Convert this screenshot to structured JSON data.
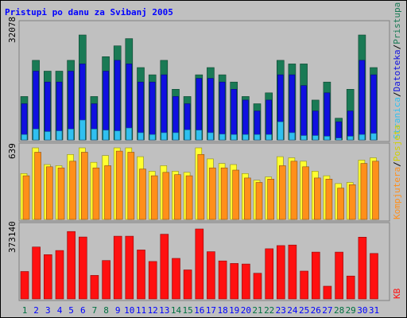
{
  "chart_data": [
    {
      "type": "bar",
      "title": "Pristupi po danu za Svibanj 2005",
      "categories": [
        "1",
        "2",
        "3",
        "4",
        "5",
        "6",
        "7",
        "8",
        "9",
        "10",
        "11",
        "12",
        "13",
        "14",
        "15",
        "16",
        "17",
        "18",
        "19",
        "20",
        "21",
        "22",
        "23",
        "24",
        "25",
        "26",
        "27",
        "28",
        "29",
        "30",
        "31"
      ],
      "ylabel": "32078",
      "legend": [
        "Pristupa",
        "/",
        "Datoteka",
        "/",
        "Stranica"
      ],
      "series": [
        {
          "name": "Pristupa",
          "color": "#1a7a55",
          "values": [
            12000,
            22000,
            19000,
            19000,
            22000,
            29000,
            12000,
            23000,
            26000,
            28000,
            20000,
            18000,
            22000,
            14000,
            12000,
            18000,
            20000,
            18000,
            16000,
            12000,
            10000,
            13000,
            22000,
            21000,
            21000,
            11000,
            16000,
            6000,
            14000,
            29000,
            20000
          ]
        },
        {
          "name": "Datoteka",
          "color": "#1010e0",
          "values": [
            10000,
            19000,
            16000,
            16000,
            19000,
            21000,
            10000,
            19000,
            22000,
            21000,
            16000,
            16000,
            18000,
            12000,
            10000,
            17000,
            17000,
            16000,
            14000,
            11000,
            8000,
            11000,
            18000,
            18000,
            15000,
            8000,
            13000,
            5000,
            8000,
            22000,
            18000
          ]
        },
        {
          "name": "Stranica",
          "color": "#30c0f0",
          "values": [
            1500,
            3000,
            2300,
            2500,
            3000,
            5500,
            3000,
            2700,
            2500,
            3300,
            2000,
            1500,
            2000,
            2000,
            2800,
            2700,
            2000,
            1600,
            1500,
            1500,
            1500,
            1500,
            5000,
            2000,
            1200,
            1200,
            1000,
            500,
            1000,
            1500,
            1800
          ]
        }
      ]
    },
    {
      "type": "bar",
      "categories": [
        "1",
        "2",
        "3",
        "4",
        "5",
        "6",
        "7",
        "8",
        "9",
        "10",
        "11",
        "12",
        "13",
        "14",
        "15",
        "16",
        "17",
        "18",
        "19",
        "20",
        "21",
        "22",
        "23",
        "24",
        "25",
        "26",
        "27",
        "28",
        "29",
        "30",
        "31"
      ],
      "ylabel": "639",
      "legend": [
        "Kompjutera",
        "/",
        "Posjeta"
      ],
      "series": [
        {
          "name": "Posjeta",
          "color": "#ffff30",
          "values": [
            410,
            639,
            490,
            480,
            580,
            639,
            510,
            570,
            639,
            639,
            560,
            430,
            480,
            430,
            420,
            639,
            540,
            500,
            490,
            410,
            350,
            380,
            560,
            550,
            520,
            430,
            390,
            320,
            330,
            530,
            550
          ]
        },
        {
          "name": "Kompjutera",
          "color": "#ff8f1a",
          "values": [
            390,
            600,
            470,
            460,
            520,
            600,
            460,
            480,
            610,
            600,
            450,
            390,
            420,
            400,
            390,
            580,
            460,
            460,
            440,
            370,
            330,
            360,
            480,
            520,
            470,
            370,
            360,
            280,
            310,
            500,
            520
          ]
        }
      ]
    },
    {
      "type": "bar",
      "categories": [
        "1",
        "2",
        "3",
        "4",
        "5",
        "6",
        "7",
        "8",
        "9",
        "10",
        "11",
        "12",
        "13",
        "14",
        "15",
        "16",
        "17",
        "18",
        "19",
        "20",
        "21",
        "22",
        "23",
        "24",
        "25",
        "26",
        "27",
        "28",
        "29",
        "30",
        "31"
      ],
      "ylabel": "373140",
      "legend": [
        "KB"
      ],
      "series": [
        {
          "name": "KB",
          "color": "#ff1010",
          "values": [
            140000,
            265000,
            226000,
            247000,
            344000,
            316000,
            120000,
            196000,
            320000,
            320000,
            250000,
            191000,
            330000,
            207000,
            148000,
            357000,
            241000,
            194000,
            181000,
            178000,
            131000,
            256000,
            272000,
            275000,
            142000,
            239000,
            65000,
            239000,
            117000,
            315000,
            232000
          ]
        }
      ]
    }
  ],
  "colors": {
    "background": "#c0c0c0",
    "title": "#0000ff",
    "axis_label": "#000000",
    "day_weekday": "#0000ff",
    "day_weekend": "#007040"
  },
  "weekend_days": [
    "1",
    "7",
    "8",
    "14",
    "15",
    "21",
    "22",
    "28",
    "29"
  ]
}
